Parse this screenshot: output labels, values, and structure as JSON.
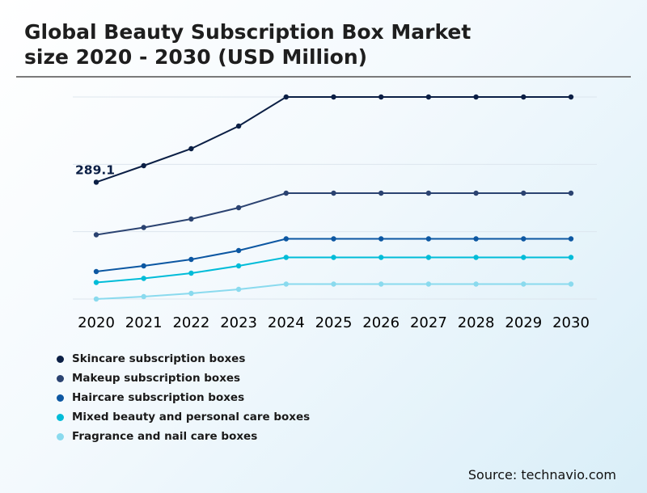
{
  "title_line1": "Global Beauty Subscription Box Market",
  "title_line2": "size 2020 - 2030 (USD Million)",
  "source": "Source: technavio.com",
  "chart_data": {
    "type": "line",
    "title": "Global Beauty Subscription Box Market size 2020 - 2030 (USD Million)",
    "categories": [
      "2020",
      "2021",
      "2022",
      "2023",
      "2024",
      "2025",
      "2026",
      "2027",
      "2028",
      "2029",
      "2030"
    ],
    "ylim": [
      0,
      500
    ],
    "gridlines": [
      0,
      166.7,
      333.3,
      500
    ],
    "annotation": {
      "text": "289.1",
      "series": "Skincare subscription boxes",
      "category": "2020"
    },
    "series": [
      {
        "name": "Skincare subscription boxes",
        "color": "#0b1f45",
        "values": [
          289.1,
          330,
          372,
          428,
          500,
          500,
          500,
          500,
          500,
          500,
          500
        ]
      },
      {
        "name": "Makeup subscription boxes",
        "color": "#2b4371",
        "values": [
          159,
          177,
          198,
          226,
          262,
          262,
          262,
          262,
          262,
          262,
          262
        ]
      },
      {
        "name": "Haircare subscription boxes",
        "color": "#0c57a2",
        "values": [
          68,
          82,
          98,
          120,
          149,
          149,
          149,
          149,
          149,
          149,
          149
        ]
      },
      {
        "name": "Mixed beauty and personal care boxes",
        "color": "#00bcd8",
        "values": [
          41,
          51,
          64,
          82,
          103,
          103,
          103,
          103,
          103,
          103,
          103
        ]
      },
      {
        "name": "Fragrance and nail care boxes",
        "color": "#8adaee",
        "values": [
          0,
          6,
          14,
          24,
          37,
          37,
          37,
          37,
          37,
          37,
          37
        ]
      }
    ]
  }
}
